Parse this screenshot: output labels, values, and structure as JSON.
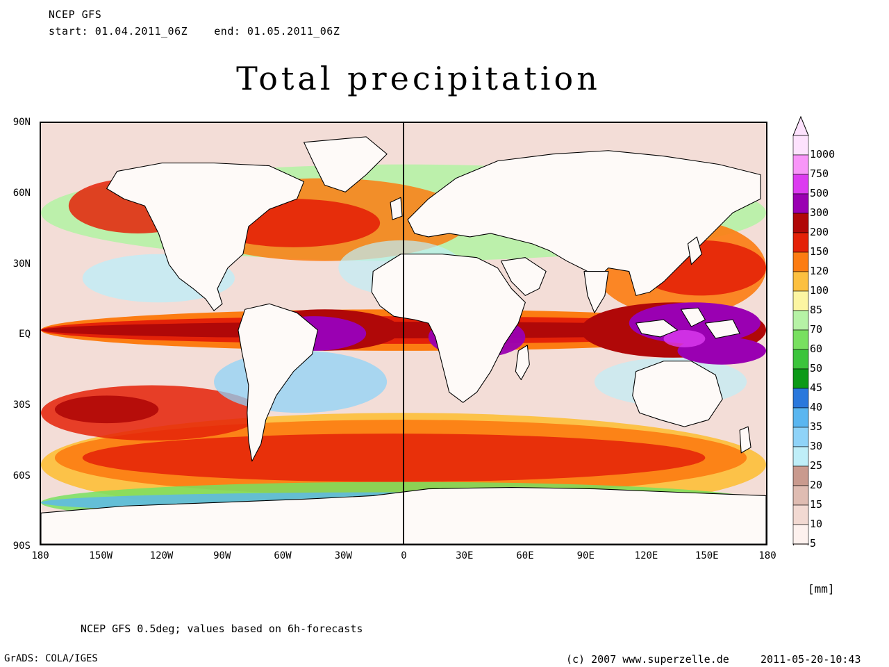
{
  "header": {
    "model": "NCEP GFS",
    "period": "start: 01.04.2011_06Z    end: 01.05.2011_06Z"
  },
  "title": "Total precipitation",
  "map": {
    "projection": "lat-lon",
    "lat_ticks": [
      "90N",
      "60N",
      "30N",
      "EQ",
      "30S",
      "60S",
      "90S"
    ],
    "lon_ticks": [
      "180",
      "150W",
      "120W",
      "90W",
      "60W",
      "30W",
      "0",
      "30E",
      "60E",
      "90E",
      "120E",
      "150E",
      "180"
    ],
    "meridian_line": "0"
  },
  "colorbar": {
    "levels": [
      {
        "label": "5",
        "color": "#fdf1ee"
      },
      {
        "label": "10",
        "color": "#f2d9d2"
      },
      {
        "label": "15",
        "color": "#dfbcb2"
      },
      {
        "label": "20",
        "color": "#c99a8e"
      },
      {
        "label": "25",
        "color": "#bfeef8"
      },
      {
        "label": "30",
        "color": "#8fd3f8"
      },
      {
        "label": "35",
        "color": "#5ab6f0"
      },
      {
        "label": "40",
        "color": "#2a78dc"
      },
      {
        "label": "45",
        "color": "#0c9a18"
      },
      {
        "label": "50",
        "color": "#3cc43c"
      },
      {
        "label": "60",
        "color": "#78e060"
      },
      {
        "label": "70",
        "color": "#b6f2a6"
      },
      {
        "label": "85",
        "color": "#fcf5a2"
      },
      {
        "label": "100",
        "color": "#fcc040"
      },
      {
        "label": "120",
        "color": "#fc7c12"
      },
      {
        "label": "150",
        "color": "#e42208"
      },
      {
        "label": "200",
        "color": "#b00808"
      },
      {
        "label": "300",
        "color": "#9a00b2"
      },
      {
        "label": "500",
        "color": "#dc3cf0"
      },
      {
        "label": "750",
        "color": "#f896f8"
      },
      {
        "label": "1000",
        "color": "#fde2fd"
      }
    ],
    "unit": "[mm]"
  },
  "footer": {
    "note": "NCEP GFS 0.5deg; values based on 6h-forecasts",
    "software": "GrADS: COLA/IGES",
    "copyright": "(c) 2007 www.superzelle.de",
    "timestamp": "2011-05-20-10:43"
  }
}
